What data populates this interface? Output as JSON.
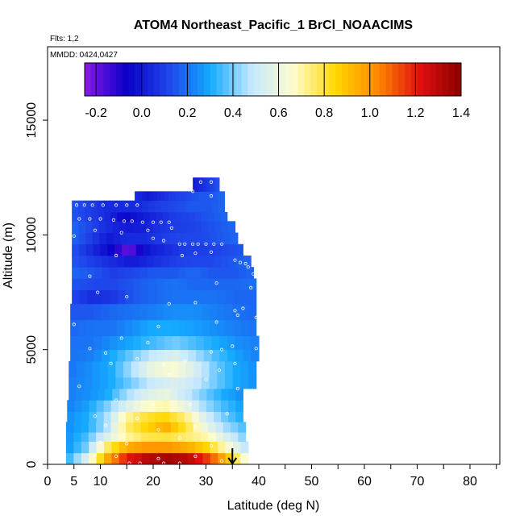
{
  "chart_data": {
    "type": "heatmap",
    "title": "ATOM4 Northeast_Pacific_1 BrCl_NOAACIMS",
    "subtitle_flights": "Flts: 1,2",
    "subtitle_dates": "MMDD: 0424,0427",
    "xlabel": "Latitude (deg N)",
    "ylabel": "Altitude (m)",
    "xlim": [
      0,
      85
    ],
    "ylim": [
      0,
      17500
    ],
    "x_ticks": [
      0,
      5,
      10,
      20,
      30,
      40,
      50,
      60,
      70,
      80
    ],
    "x_tick_labels": [
      "0",
      "5",
      "10",
      "20",
      "30",
      "40",
      "50",
      "60",
      "70",
      "80"
    ],
    "x_minor_ticks": [
      15,
      25,
      35,
      45,
      55,
      65,
      75,
      85
    ],
    "y_ticks": [
      0,
      5000,
      10000,
      15000
    ],
    "y_tick_labels": [
      "0",
      "5000",
      "10000",
      "15000"
    ],
    "colorbar": {
      "range": [
        -0.25,
        1.4
      ],
      "ticks": [
        -0.2,
        0.0,
        0.2,
        0.4,
        0.6,
        0.8,
        1.0,
        1.2,
        1.4
      ],
      "tick_labels": [
        "-0.2",
        "0.0",
        "0.2",
        "0.4",
        "0.6",
        "0.8",
        "1.0",
        "1.2",
        "1.4"
      ],
      "colors": [
        "#8b1ae8",
        "#0a00c8",
        "#1f44ea",
        "#14aaff",
        "#c6e8ff",
        "#fffccc",
        "#ffd800",
        "#ff8800",
        "#e21010",
        "#8a0000"
      ]
    },
    "marker": {
      "latitude": 35,
      "altitude_top": 700,
      "altitude_bottom": 0
    },
    "layers": [
      {
        "y0": 0,
        "y1": 500,
        "x0": 3.5,
        "x1": 38.0,
        "values": [
          0.3,
          0.55,
          0.95,
          1.2,
          1.3,
          1.35,
          1.3,
          1.15,
          0.9,
          0.6
        ]
      },
      {
        "y0": 500,
        "y1": 1000,
        "x0": 3.5,
        "x1": 38.0,
        "values": [
          0.25,
          0.4,
          0.75,
          0.95,
          1.0,
          1.0,
          0.95,
          0.85,
          0.65,
          0.45
        ]
      },
      {
        "y0": 1000,
        "y1": 1400,
        "x0": 3.5,
        "x1": 37.5,
        "values": [
          0.25,
          0.35,
          0.55,
          0.7,
          0.78,
          0.8,
          0.75,
          0.7,
          0.55,
          0.4
        ]
      },
      {
        "y0": 1400,
        "y1": 1850,
        "x0": 3.5,
        "x1": 37.5,
        "values": [
          0.25,
          0.3,
          0.45,
          0.75,
          0.85,
          0.95,
          0.8,
          0.6,
          0.45,
          0.35
        ]
      },
      {
        "y0": 1850,
        "y1": 2300,
        "x0": 3.7,
        "x1": 37.0,
        "values": [
          0.25,
          0.3,
          0.45,
          0.7,
          0.8,
          0.85,
          0.75,
          0.55,
          0.4,
          0.3
        ]
      },
      {
        "y0": 2300,
        "y1": 2800,
        "x0": 3.7,
        "x1": 37.0,
        "values": [
          0.22,
          0.28,
          0.4,
          0.55,
          0.65,
          0.7,
          0.6,
          0.45,
          0.35,
          0.28
        ]
      },
      {
        "y0": 2800,
        "y1": 3300,
        "x0": 4.0,
        "x1": 37.0,
        "values": [
          0.22,
          0.25,
          0.3,
          0.45,
          0.55,
          0.6,
          0.5,
          0.4,
          0.3,
          0.25
        ]
      },
      {
        "y0": 3300,
        "y1": 3800,
        "x0": 4.0,
        "x1": 39.5,
        "values": [
          0.22,
          0.25,
          0.3,
          0.4,
          0.5,
          0.55,
          0.5,
          0.4,
          0.3,
          0.25
        ]
      },
      {
        "y0": 3800,
        "y1": 4500,
        "x0": 4.0,
        "x1": 39.5,
        "values": [
          0.2,
          0.25,
          0.3,
          0.45,
          0.6,
          0.65,
          0.55,
          0.4,
          0.3,
          0.25
        ]
      },
      {
        "y0": 4500,
        "y1": 5000,
        "x0": 4.3,
        "x1": 40.0,
        "values": [
          0.2,
          0.22,
          0.3,
          0.4,
          0.5,
          0.55,
          0.45,
          0.35,
          0.28,
          0.22
        ]
      },
      {
        "y0": 5000,
        "y1": 5600,
        "x0": 4.3,
        "x1": 40.0,
        "values": [
          0.2,
          0.2,
          0.25,
          0.3,
          0.35,
          0.4,
          0.35,
          0.3,
          0.25,
          0.22
        ]
      },
      {
        "y0": 5600,
        "y1": 6300,
        "x0": 4.3,
        "x1": 39.5,
        "values": [
          0.18,
          0.2,
          0.2,
          0.25,
          0.3,
          0.3,
          0.28,
          0.25,
          0.22,
          0.2
        ]
      },
      {
        "y0": 6300,
        "y1": 7000,
        "x0": 4.3,
        "x1": 39.5,
        "values": [
          0.15,
          0.15,
          0.18,
          0.2,
          0.22,
          0.25,
          0.25,
          0.22,
          0.2,
          0.18
        ]
      },
      {
        "y0": 7000,
        "y1": 7600,
        "x0": 4.6,
        "x1": 39.5,
        "values": [
          0.12,
          0.05,
          0.08,
          0.15,
          0.18,
          0.2,
          0.2,
          0.2,
          0.18,
          0.18
        ]
      },
      {
        "y0": 7600,
        "y1": 8100,
        "x0": 4.6,
        "x1": 39.5,
        "values": [
          0.15,
          0.12,
          0.12,
          0.15,
          0.18,
          0.2,
          0.18,
          0.18,
          0.18,
          0.2
        ]
      },
      {
        "y0": 8100,
        "y1": 8600,
        "x0": 4.6,
        "x1": 39.0,
        "values": [
          0.18,
          0.15,
          0.1,
          0.12,
          0.15,
          0.15,
          0.18,
          0.15,
          0.15,
          0.18
        ]
      },
      {
        "y0": 8600,
        "y1": 9100,
        "x0": 4.6,
        "x1": 38.5,
        "values": [
          0.15,
          0.1,
          0.05,
          0.0,
          0.05,
          0.1,
          0.12,
          0.12,
          0.15,
          0.18
        ]
      },
      {
        "y0": 9100,
        "y1": 9600,
        "x0": 4.6,
        "x1": 37.0,
        "values": [
          0.15,
          0.05,
          -0.05,
          -0.2,
          0.0,
          0.05,
          0.1,
          0.1,
          0.12,
          0.15
        ]
      },
      {
        "y0": 9600,
        "y1": 10100,
        "x0": 4.6,
        "x1": 36.0,
        "values": [
          0.18,
          0.1,
          0.0,
          0.05,
          0.05,
          0.1,
          0.12,
          0.12,
          0.15,
          0.18
        ]
      },
      {
        "y0": 10100,
        "y1": 10600,
        "x0": 4.6,
        "x1": 35.5,
        "values": [
          0.18,
          0.12,
          0.05,
          0.0,
          0.02,
          0.08,
          0.1,
          0.12,
          0.15,
          0.18
        ]
      },
      {
        "y0": 10600,
        "y1": 11000,
        "x0": 4.6,
        "x1": 34.0,
        "values": [
          0.15,
          0.1,
          0.05,
          -0.05,
          0.0,
          0.05,
          0.1,
          0.12,
          0.15,
          0.18
        ]
      },
      {
        "y0": 11000,
        "y1": 11500,
        "x0": 4.6,
        "x1": 33.5,
        "values": [
          0.15,
          0.1,
          0.05,
          0.05,
          0.05,
          0.1,
          0.12,
          0.15,
          0.15,
          0.18
        ]
      },
      {
        "y0": 11500,
        "y1": 11900,
        "x0": 16.5,
        "x1": 33.5,
        "values": [
          0.05,
          0.0,
          0.05,
          0.1,
          0.12,
          0.15,
          0.15,
          0.18
        ]
      },
      {
        "y0": 11900,
        "y1": 12500,
        "x0": 27.5,
        "x1": 32.5,
        "values": [
          0.0,
          0.05,
          0.1,
          0.15
        ]
      }
    ],
    "samples": [
      [
        25.5,
        12300
      ],
      [
        27,
        12300
      ],
      [
        29,
        12300
      ],
      [
        31,
        12300
      ],
      [
        27.5,
        11900
      ],
      [
        31,
        11700
      ],
      [
        5.5,
        11300
      ],
      [
        7,
        11300
      ],
      [
        8.5,
        11300
      ],
      [
        10.5,
        11300
      ],
      [
        13,
        11300
      ],
      [
        15,
        11300
      ],
      [
        17,
        11300
      ],
      [
        6,
        10700
      ],
      [
        8,
        10700
      ],
      [
        10,
        10700
      ],
      [
        12.5,
        10650
      ],
      [
        14.5,
        10600
      ],
      [
        16,
        10600
      ],
      [
        18,
        10550
      ],
      [
        20,
        10550
      ],
      [
        21.5,
        10550
      ],
      [
        23,
        10550
      ],
      [
        9,
        10200
      ],
      [
        14,
        10100
      ],
      [
        19,
        10200
      ],
      [
        23.5,
        10300
      ],
      [
        5,
        9950
      ],
      [
        20,
        9850
      ],
      [
        22,
        9750
      ],
      [
        25,
        9600
      ],
      [
        26,
        9600
      ],
      [
        27.5,
        9600
      ],
      [
        28.5,
        9600
      ],
      [
        30,
        9600
      ],
      [
        31.5,
        9600
      ],
      [
        33,
        9600
      ],
      [
        13,
        9100
      ],
      [
        25.5,
        9100
      ],
      [
        28,
        9200
      ],
      [
        31,
        9250
      ],
      [
        35.5,
        8900
      ],
      [
        36.5,
        8800
      ],
      [
        37.5,
        8750
      ],
      [
        38,
        8600
      ],
      [
        39,
        8300
      ],
      [
        8,
        8200
      ],
      [
        32,
        7900
      ],
      [
        38.5,
        7700
      ],
      [
        9.5,
        7500
      ],
      [
        15,
        7300
      ],
      [
        23,
        7000
      ],
      [
        28,
        7050
      ],
      [
        35.5,
        6700
      ],
      [
        37,
        6800
      ],
      [
        39.5,
        6400
      ],
      [
        5,
        6100
      ],
      [
        21,
        6000
      ],
      [
        32,
        6200
      ],
      [
        36,
        6500
      ],
      [
        14,
        5500
      ],
      [
        19,
        5300
      ],
      [
        8,
        5050
      ],
      [
        11,
        4850
      ],
      [
        33,
        5000
      ],
      [
        35,
        5150
      ],
      [
        39.5,
        5050
      ],
      [
        17,
        4600
      ],
      [
        22,
        4350
      ],
      [
        26,
        4500
      ],
      [
        31,
        4900
      ],
      [
        35.5,
        4400
      ],
      [
        12,
        4400
      ],
      [
        23,
        3900
      ],
      [
        32.5,
        4100
      ],
      [
        6,
        3400
      ],
      [
        30,
        3700
      ],
      [
        36,
        3300
      ],
      [
        13,
        2800
      ],
      [
        20,
        2600
      ],
      [
        27,
        2600
      ],
      [
        9,
        2100
      ],
      [
        17,
        2000
      ],
      [
        23.5,
        2350
      ],
      [
        34,
        2200
      ],
      [
        11,
        1700
      ],
      [
        21,
        1500
      ],
      [
        28,
        1650
      ],
      [
        10,
        950
      ],
      [
        15,
        900
      ],
      [
        25,
        1150
      ],
      [
        31,
        800
      ],
      [
        9,
        400
      ],
      [
        13,
        350
      ],
      [
        21,
        250
      ],
      [
        28,
        350
      ],
      [
        36.5,
        250
      ],
      [
        15.5,
        50
      ],
      [
        17.5,
        50
      ],
      [
        22,
        50
      ],
      [
        25,
        50
      ],
      [
        33,
        150
      ]
    ]
  }
}
